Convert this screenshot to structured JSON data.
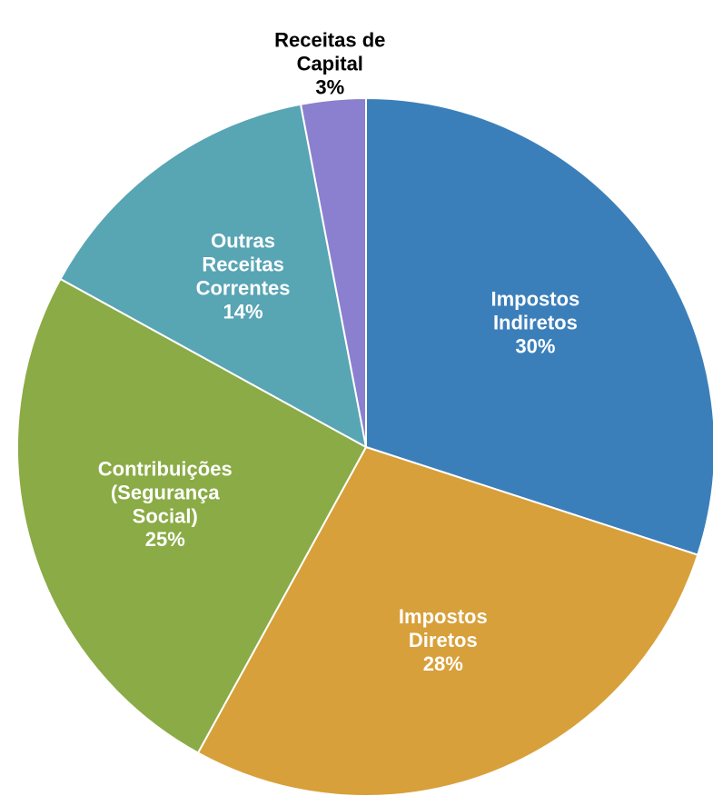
{
  "chart_data": {
    "type": "pie",
    "categories": [
      "Impostos\nIndiretos",
      "Impostos\nDiretos",
      "Contribuições\n(Segurança\nSocial)",
      "Outras\nReceitas\nCorrentes",
      "Receitas de\nCapital"
    ],
    "values": [
      30,
      28,
      25,
      14,
      3
    ],
    "value_labels": [
      "30%",
      "28%",
      "25%",
      "14%",
      "3%"
    ],
    "colors": [
      "#3b7fba",
      "#d8a03a",
      "#8aab45",
      "#58a5b4",
      "#8b7fcf"
    ]
  }
}
